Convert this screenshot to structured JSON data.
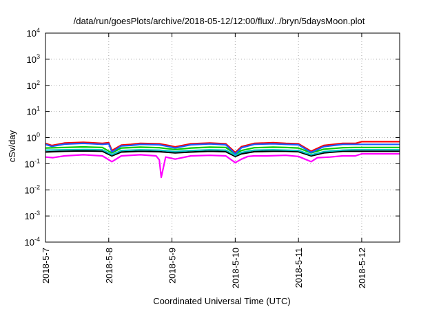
{
  "chart_data": {
    "type": "line",
    "title": "/data/run/goesPlots/archive/2018-05-12/12:00/flux/../bryn/5daysMoon.plot",
    "xlabel": "Coordinated Universal Time (UTC)",
    "ylabel": "cSv/day",
    "yscale": "log",
    "ylim": [
      0.0001,
      10000
    ],
    "xlim": [
      0,
      5.6
    ],
    "x_ticks": [
      {
        "x": 0,
        "label": "2018-5-7"
      },
      {
        "x": 1,
        "label": "2018-5-8"
      },
      {
        "x": 2,
        "label": "2018-5-9"
      },
      {
        "x": 3,
        "label": "2018-5-10"
      },
      {
        "x": 4,
        "label": "2018-5-11"
      },
      {
        "x": 5,
        "label": "2018-5-12"
      }
    ],
    "y_ticks": [
      {
        "value": 0.0001,
        "base": "10",
        "exp": "-4"
      },
      {
        "value": 0.001,
        "base": "10",
        "exp": "-3"
      },
      {
        "value": 0.01,
        "base": "10",
        "exp": "-2"
      },
      {
        "value": 0.1,
        "base": "10",
        "exp": "-1"
      },
      {
        "value": 1,
        "base": "10",
        "exp": "0"
      },
      {
        "value": 10,
        "base": "10",
        "exp": "1"
      },
      {
        "value": 100,
        "base": "10",
        "exp": "2"
      },
      {
        "value": 1000,
        "base": "10",
        "exp": "3"
      },
      {
        "value": 10000,
        "base": "10",
        "exp": "4"
      }
    ],
    "grid": true,
    "legend": "none",
    "data_end_x": 3.78,
    "series": [
      {
        "color": "#ff00ff",
        "x": [
          0,
          0.12,
          0.3,
          0.6,
          0.9,
          1.05,
          1.2,
          1.5,
          1.75,
          1.8,
          1.83,
          1.9,
          2.05,
          2.3,
          2.6,
          2.85,
          3.0,
          3.1,
          3.2,
          3.3,
          3.5,
          3.8,
          4.0,
          4.2,
          4.3,
          4.5,
          4.7,
          4.9,
          5.0,
          5.6
        ],
        "values": [
          0.18,
          0.17,
          0.2,
          0.22,
          0.2,
          0.12,
          0.2,
          0.22,
          0.2,
          0.14,
          0.03,
          0.18,
          0.15,
          0.2,
          0.21,
          0.2,
          0.11,
          0.15,
          0.19,
          0.2,
          0.2,
          0.21,
          0.19,
          0.12,
          0.17,
          0.18,
          0.2,
          0.2,
          0.24,
          0.24
        ]
      },
      {
        "color": "#000000",
        "x": [
          0,
          0.3,
          0.6,
          0.9,
          1.05,
          1.2,
          1.5,
          1.8,
          2.05,
          2.3,
          2.6,
          2.85,
          3.0,
          3.1,
          3.3,
          3.6,
          3.8,
          4.0,
          4.2,
          4.4,
          4.7,
          4.9,
          5.0,
          5.6
        ],
        "values": [
          0.28,
          0.3,
          0.31,
          0.3,
          0.2,
          0.28,
          0.3,
          0.29,
          0.26,
          0.28,
          0.3,
          0.29,
          0.19,
          0.24,
          0.29,
          0.3,
          0.3,
          0.29,
          0.2,
          0.26,
          0.3,
          0.3,
          0.3,
          0.3
        ]
      },
      {
        "color": "#00c0c0",
        "x": [
          0,
          0.3,
          0.6,
          0.9,
          1.05,
          1.2,
          1.5,
          1.8,
          2.05,
          2.3,
          2.6,
          2.85,
          3.0,
          3.1,
          3.3,
          3.6,
          3.8,
          4.0,
          4.2,
          4.4,
          4.7,
          4.9,
          5.0,
          5.6
        ],
        "values": [
          0.33,
          0.34,
          0.35,
          0.34,
          0.22,
          0.32,
          0.34,
          0.33,
          0.29,
          0.32,
          0.34,
          0.33,
          0.21,
          0.27,
          0.33,
          0.34,
          0.33,
          0.32,
          0.22,
          0.29,
          0.33,
          0.34,
          0.34,
          0.34
        ]
      },
      {
        "color": "#00cc00",
        "x": [
          0,
          0.3,
          0.6,
          0.9,
          1.05,
          1.2,
          1.5,
          1.8,
          2.05,
          2.3,
          2.6,
          2.85,
          3.0,
          3.1,
          3.3,
          3.6,
          3.8,
          4.0,
          4.2,
          4.4,
          4.7,
          4.9,
          5.0,
          5.6
        ],
        "values": [
          0.4,
          0.42,
          0.44,
          0.42,
          0.26,
          0.4,
          0.43,
          0.41,
          0.35,
          0.4,
          0.43,
          0.42,
          0.24,
          0.32,
          0.41,
          0.43,
          0.42,
          0.4,
          0.26,
          0.36,
          0.41,
          0.42,
          0.42,
          0.42
        ]
      },
      {
        "color": "#ff0000",
        "x": [
          0,
          0.1,
          0.3,
          0.6,
          0.9,
          1.0,
          1.05,
          1.2,
          1.35,
          1.5,
          1.8,
          1.95,
          2.05,
          2.3,
          2.6,
          2.85,
          3.0,
          3.1,
          3.3,
          3.6,
          3.8,
          4.0,
          4.2,
          4.4,
          4.7,
          4.9,
          5.0,
          5.6
        ],
        "values": [
          0.6,
          0.5,
          0.62,
          0.66,
          0.6,
          0.64,
          0.32,
          0.52,
          0.55,
          0.6,
          0.58,
          0.5,
          0.44,
          0.58,
          0.62,
          0.58,
          0.27,
          0.45,
          0.6,
          0.64,
          0.6,
          0.58,
          0.3,
          0.5,
          0.6,
          0.6,
          0.7,
          0.7
        ]
      },
      {
        "color": "#1a5cff",
        "x": [
          0,
          0.1,
          0.3,
          0.6,
          0.9,
          1.0,
          1.05,
          1.2,
          1.35,
          1.5,
          1.8,
          1.95,
          2.05,
          2.3,
          2.6,
          2.85,
          3.0,
          3.1,
          3.3,
          3.6,
          3.8,
          4.0,
          4.2,
          4.4,
          4.7,
          4.9,
          5.0,
          5.6
        ],
        "values": [
          0.55,
          0.46,
          0.56,
          0.6,
          0.55,
          0.58,
          0.28,
          0.48,
          0.5,
          0.55,
          0.53,
          0.45,
          0.4,
          0.53,
          0.57,
          0.53,
          0.24,
          0.41,
          0.55,
          0.58,
          0.55,
          0.53,
          0.27,
          0.45,
          0.55,
          0.55,
          0.55,
          0.55
        ]
      }
    ]
  }
}
